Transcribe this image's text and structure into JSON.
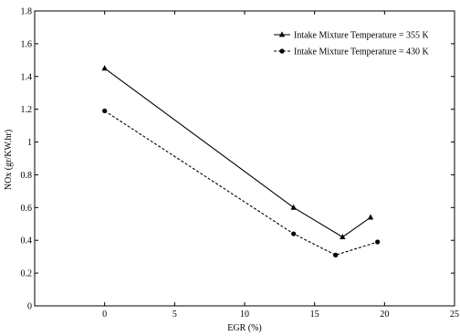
{
  "chart_data": {
    "type": "line",
    "title": "",
    "xlabel": "EGR (%)",
    "ylabel": "NOx (gr/KW.hr)",
    "xlim": [
      -5,
      25
    ],
    "ylim": [
      0,
      1.8
    ],
    "xticks": [
      0,
      5,
      10,
      15,
      20,
      25
    ],
    "yticks": [
      0,
      0.2,
      0.4,
      0.6,
      0.8,
      1,
      1.2,
      1.4,
      1.6,
      1.8
    ],
    "xtick_labels": [
      "0",
      "5",
      "10",
      "15",
      "20",
      "25"
    ],
    "ytick_labels": [
      "0",
      "0.2",
      "0.4",
      "0.6",
      "0.8",
      "1",
      "1.2",
      "1.4",
      "1.6",
      "1.8"
    ],
    "grid": false,
    "legend_position": "top-right",
    "series": [
      {
        "name": "Intake Mixture Temperature = 355 K",
        "x": [
          0,
          13.5,
          17,
          19
        ],
        "y": [
          1.45,
          0.6,
          0.42,
          0.54
        ],
        "marker": "triangle",
        "line_style": "solid",
        "color": "#000000"
      },
      {
        "name": "Intake Mixture Temperature = 430 K",
        "x": [
          0,
          13.5,
          16.5,
          19.5
        ],
        "y": [
          1.19,
          0.44,
          0.31,
          0.39
        ],
        "marker": "circle",
        "line_style": "dashed",
        "color": "#000000"
      }
    ]
  }
}
